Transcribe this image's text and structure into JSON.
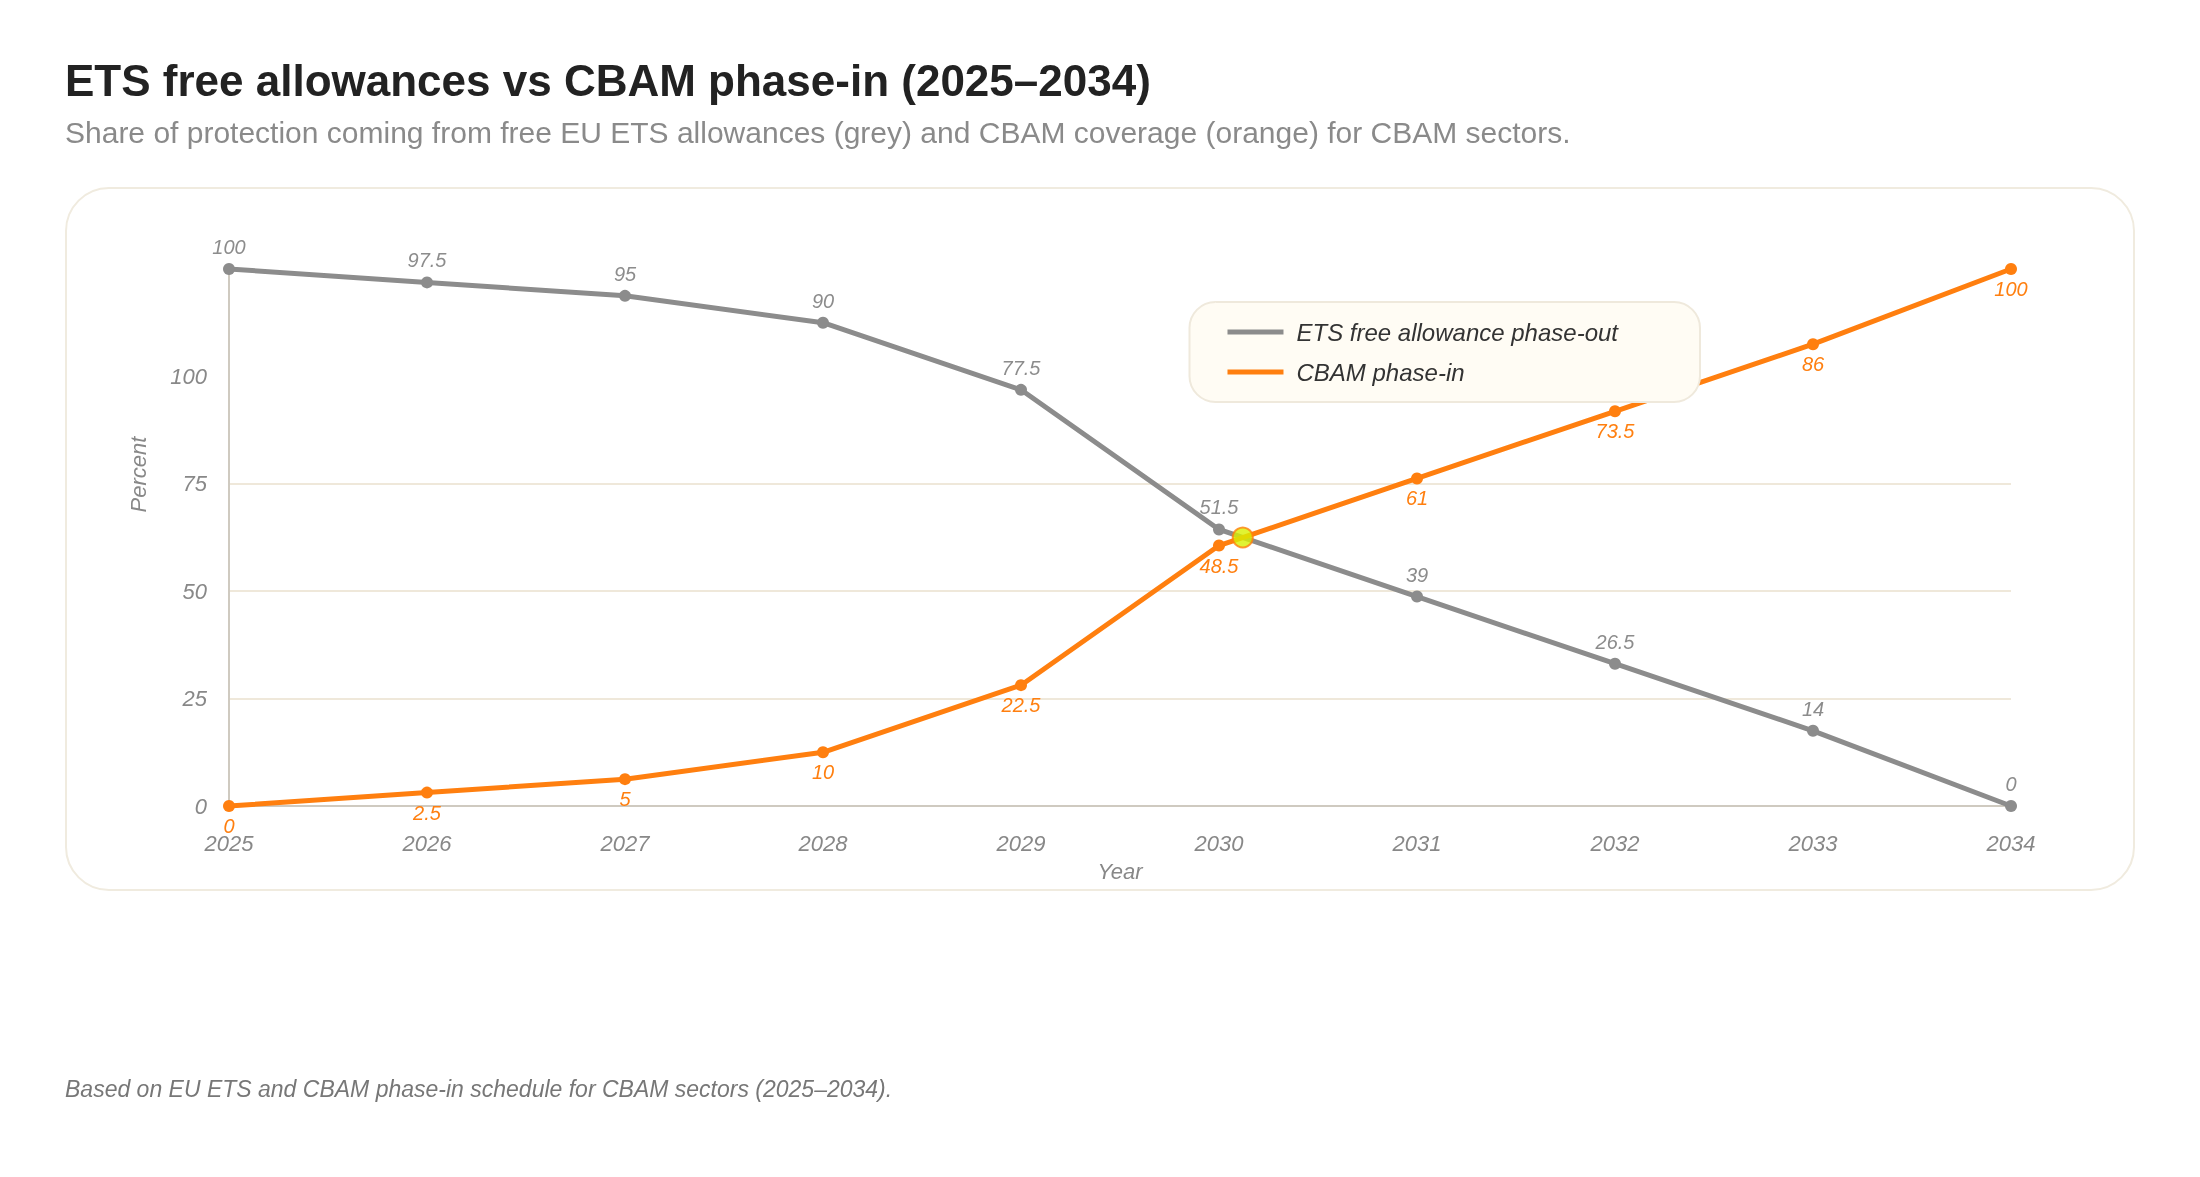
{
  "chart_data": {
    "type": "line",
    "title": "ETS free allowances vs CBAM phase-in (2025–2034)",
    "subtitle": "Share of protection coming from free EU ETS allowances (grey) and CBAM coverage (orange) for CBAM sectors.",
    "xlabel": "Year",
    "ylabel": "Percent",
    "annotations": [
      "Based on EU ETS and CBAM phase-in schedule for CBAM sectors (2025–2034)."
    ],
    "x": [
      2025,
      2026,
      2027,
      2028,
      2029,
      2030,
      2031,
      2032,
      2033,
      2034
    ],
    "series": [
      {
        "name": "ETS free allowance phase-out",
        "color": "#8c8c8c",
        "axis": "y2",
        "values": [
          100,
          97.5,
          95,
          90,
          77.5,
          51.5,
          39,
          26.5,
          14,
          0
        ],
        "value_labels": [
          "100",
          "97.5",
          "95",
          "90",
          "77.5",
          "51.5",
          "39",
          "26.5",
          "14",
          "0"
        ]
      },
      {
        "name": "CBAM phase-in",
        "color": "#ff7f0f",
        "axis": "y2",
        "values": [
          0,
          2.5,
          5,
          10,
          22.5,
          48.5,
          61,
          73.5,
          86,
          100
        ],
        "value_labels": [
          "0",
          "2.5",
          "5",
          "10",
          "22.5",
          "48.5",
          "61",
          "73.5",
          "86",
          "100"
        ]
      },
      {
        "type": "scatter",
        "axis": "y2",
        "x": [
          2030.12
        ],
        "values": [
          50
        ],
        "color": "#d8f000"
      }
    ],
    "xlim": [
      2025,
      2034
    ],
    "xticks": [
      2025,
      2026,
      2027,
      2028,
      2029,
      2030,
      2031,
      2032,
      2033,
      2034
    ],
    "ylim": [
      0,
      125
    ],
    "yticks": [
      0,
      25,
      50,
      75,
      100
    ],
    "y2lim": [
      0,
      100
    ],
    "grid": "y",
    "legend": "top right",
    "marker": "circle",
    "line_style": "solid"
  }
}
